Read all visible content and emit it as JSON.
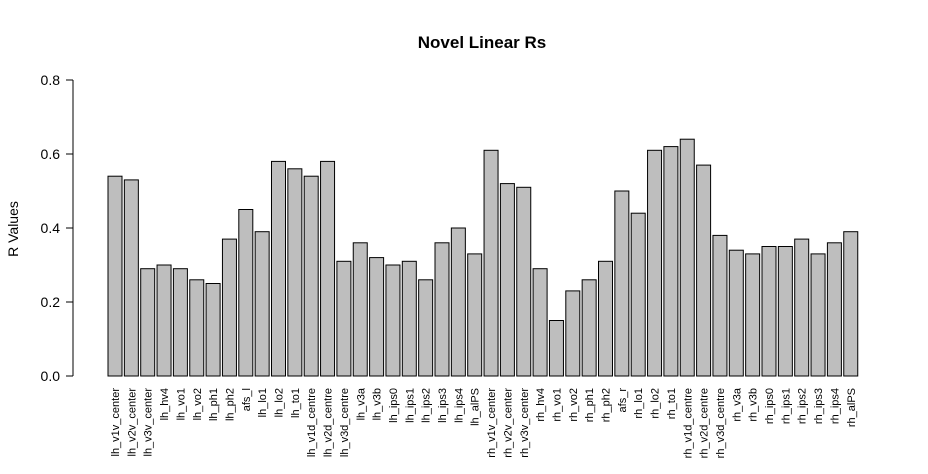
{
  "chart_data": {
    "type": "bar",
    "title": "Novel Linear Rs",
    "xlabel": "",
    "ylabel": "R Values",
    "ylim": [
      0,
      0.8
    ],
    "yticks": [
      "0.0",
      "0.2",
      "0.4",
      "0.6",
      "0.8"
    ],
    "grid": false,
    "categories": [
      "lh_v1v_center",
      "lh_v2v_center",
      "lh_v3v_center",
      "lh_hv4",
      "lh_vo1",
      "lh_vo2",
      "lh_ph1",
      "lh_ph2",
      "afs_l",
      "lh_lo1",
      "lh_lo2",
      "lh_to1",
      "lh_v1d_centre",
      "lh_v2d_centre",
      "lh_v3d_centre",
      "lh_v3a",
      "lh_v3b",
      "lh_ips0",
      "lh_ips1",
      "lh_ips2",
      "lh_ips3",
      "lh_ips4",
      "lh_alPS",
      "rh_v1v_center",
      "rh_v2v_center",
      "rh_v3v_center",
      "rh_hv4",
      "rh_vo1",
      "rh_vo2",
      "rh_ph1",
      "rh_ph2",
      "afs_r",
      "rh_lo1",
      "rh_lo2",
      "rh_to1",
      "rh_v1d_centre",
      "rh_v2d_centre",
      "rh_v3d_centre",
      "rh_v3a",
      "rh_v3b",
      "rh_ips0",
      "rh_ips1",
      "rh_ips2",
      "rh_ips3",
      "rh_ips4",
      "rh_alPS"
    ],
    "values": [
      0.54,
      0.53,
      0.29,
      0.3,
      0.29,
      0.26,
      0.25,
      0.37,
      0.45,
      0.39,
      0.58,
      0.56,
      0.54,
      0.58,
      0.31,
      0.36,
      0.32,
      0.3,
      0.31,
      0.26,
      0.36,
      0.4,
      0.33,
      0.61,
      0.52,
      0.51,
      0.29,
      0.15,
      0.23,
      0.26,
      0.31,
      0.5,
      0.44,
      0.61,
      0.62,
      0.64,
      0.57,
      0.38,
      0.34,
      0.33,
      0.35,
      0.35,
      0.37,
      0.33,
      0.36,
      0.39
    ],
    "colors": {
      "bar_fill": "#bebebe",
      "bar_stroke": "#000000"
    }
  }
}
